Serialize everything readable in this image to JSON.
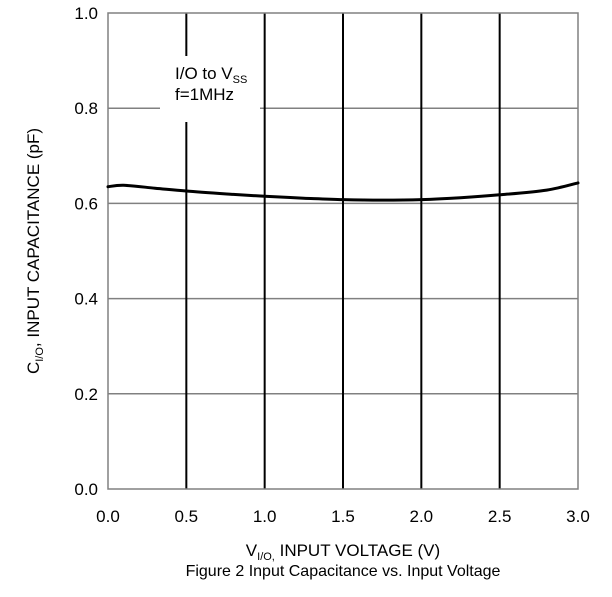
{
  "chart_data": {
    "type": "line",
    "title": "",
    "caption": "Figure 2 Input Capacitance vs. Input Voltage",
    "xlabel": {
      "prefix": "V",
      "subscript": "I/O,",
      "rest": " INPUT VOLTAGE (V)"
    },
    "ylabel": {
      "prefix": "C",
      "subscript": "I/O",
      "rest": ", INPUT CAPACITANCE (pF)"
    },
    "annotation": {
      "line1_prefix": "I/O to V",
      "line1_subscript": "SS",
      "line2": "f=1MHz"
    },
    "xlim": [
      0.0,
      3.0
    ],
    "ylim": [
      0.0,
      1.0
    ],
    "x_ticks": [
      "0.0",
      "0.5",
      "1.0",
      "1.5",
      "2.0",
      "2.5",
      "3.0"
    ],
    "y_ticks": [
      "0.0",
      "0.2",
      "0.4",
      "0.6",
      "0.8",
      "1.0"
    ],
    "grid": true,
    "series": [
      {
        "color": "#000000",
        "x": [
          0.0,
          0.1,
          0.3,
          0.5,
          0.8,
          1.0,
          1.25,
          1.5,
          1.75,
          2.0,
          2.25,
          2.5,
          2.8,
          3.0
        ],
        "y": [
          0.635,
          0.638,
          0.632,
          0.626,
          0.619,
          0.615,
          0.611,
          0.608,
          0.607,
          0.608,
          0.612,
          0.618,
          0.628,
          0.643
        ]
      }
    ]
  }
}
